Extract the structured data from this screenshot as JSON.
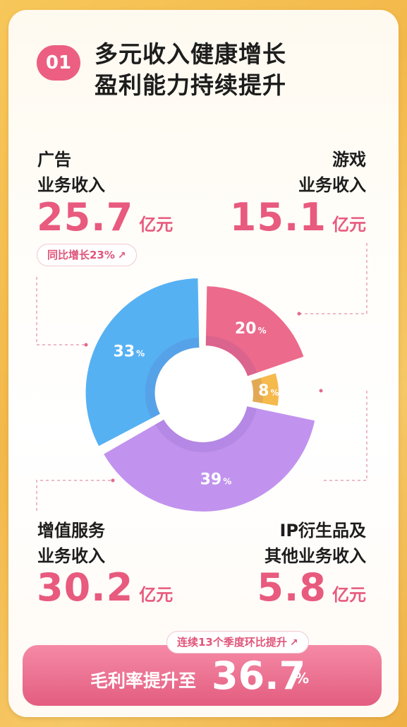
{
  "header": {
    "badge": "01",
    "line1": "多元收入健康增长",
    "line2": "盈利能力持续提升"
  },
  "segments": {
    "ads": {
      "line1": "广告",
      "line2": "业务收入",
      "value": "25.7",
      "unit": "亿元",
      "growth": "同比增长23%"
    },
    "games": {
      "line1": "游戏",
      "line2": "业务收入",
      "value": "15.1",
      "unit": "亿元"
    },
    "vas": {
      "line1": "增值服务",
      "line2": "业务收入",
      "value": "30.2",
      "unit": "亿元"
    },
    "ip": {
      "line1": "IP衍生品及",
      "line2": "其他业务收入",
      "value": "5.8",
      "unit": "亿元"
    }
  },
  "gross_margin": {
    "note": "连续13个季度环比提升",
    "label": "毛利率提升至",
    "value": "36.7",
    "unit": "%"
  },
  "chart_data": {
    "type": "pie",
    "style": "donut",
    "slices": [
      {
        "name": "游戏",
        "value": 20,
        "label": "20",
        "unit": "%",
        "color": "#ec6a8c"
      },
      {
        "name": "IP衍生品及其他",
        "value": 8,
        "label": "8",
        "unit": "%",
        "color": "#f5b94c"
      },
      {
        "name": "增值服务",
        "value": 39,
        "label": "39",
        "unit": "%",
        "color": "#c193ee"
      },
      {
        "name": "广告",
        "value": 33,
        "label": "33",
        "unit": "%",
        "color": "#56b1f3"
      }
    ]
  },
  "colors": {
    "accent": "#e85a7e",
    "background": "#f5c05a"
  },
  "icons": {
    "growth": "arrow-up-right-icon"
  }
}
